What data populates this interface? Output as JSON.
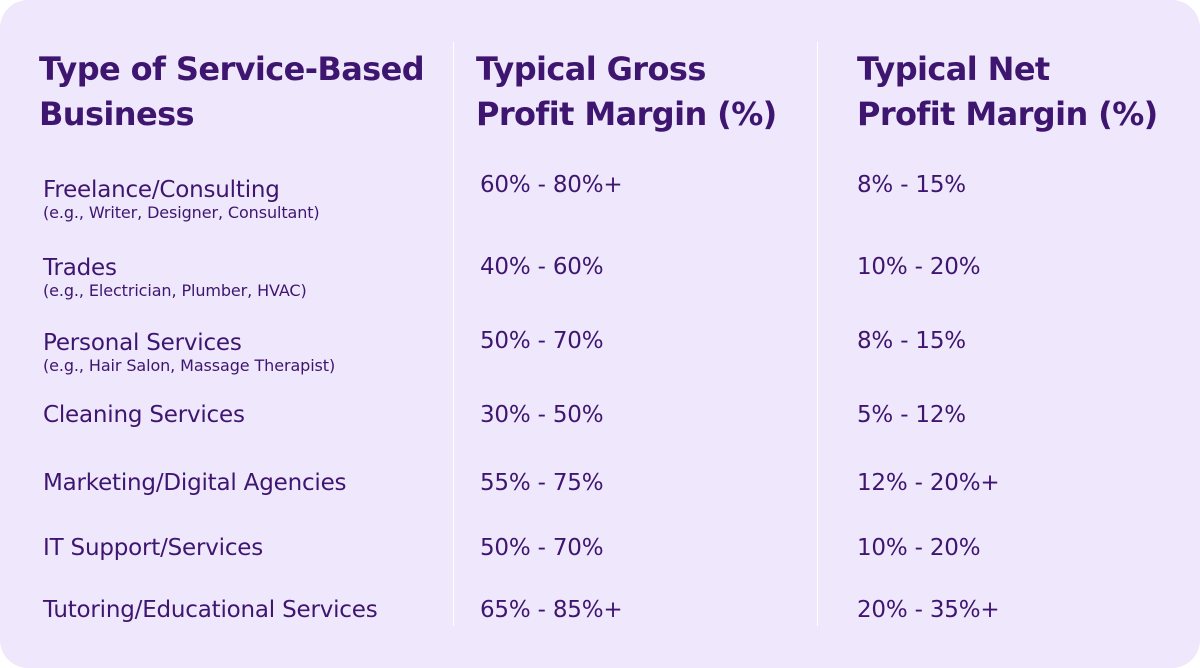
{
  "headers": {
    "type": [
      "Type of Service-Based",
      "Business"
    ],
    "gross": [
      "Typical Gross",
      "Profit Margin (%)"
    ],
    "net": [
      "Typical Net",
      "Profit Margin (%)"
    ]
  },
  "rows": [
    {
      "type": "Freelance/Consulting",
      "example": "(e.g., Writer, Designer, Consultant)",
      "gross": "60% - 80%+",
      "net": "8% - 15%"
    },
    {
      "type": "Trades",
      "example": "(e.g., Electrician, Plumber, HVAC)",
      "gross": "40% - 60%",
      "net": "10% - 20%"
    },
    {
      "type": "Personal Services",
      "example": "(e.g., Hair Salon, Massage Therapist)",
      "gross": "50% - 70%",
      "net": "8% - 15%"
    },
    {
      "type": "Cleaning Services",
      "example": "",
      "gross": "30% - 50%",
      "net": "5% - 12%"
    },
    {
      "type": "Marketing/Digital Agencies",
      "example": "",
      "gross": "55% - 75%",
      "net": "12% - 20%+"
    },
    {
      "type": "IT Support/Services",
      "example": "",
      "gross": "50% - 70%",
      "net": "10% - 20%"
    },
    {
      "type": "Tutoring/Educational Services",
      "example": "",
      "gross": "65% - 85%+",
      "net": "20% - 35%+"
    }
  ]
}
